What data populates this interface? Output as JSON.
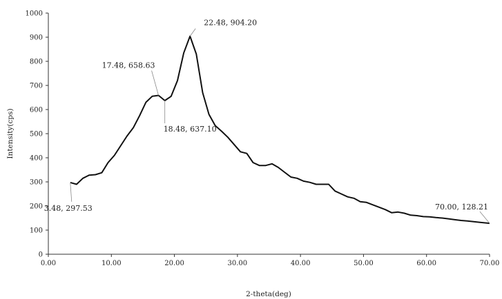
{
  "chart_data": {
    "type": "line",
    "title": "",
    "xlabel": "2-theta(deg)",
    "ylabel": "Intensity(cps)",
    "xlim": [
      0,
      70
    ],
    "ylim": [
      0,
      1000
    ],
    "x_ticks": [
      "0.00",
      "10.00",
      "20.00",
      "30.00",
      "40.00",
      "50.00",
      "60.00",
      "70.00"
    ],
    "y_ticks": [
      "0",
      "100",
      "200",
      "300",
      "400",
      "500",
      "600",
      "700",
      "800",
      "900",
      "1000"
    ],
    "grid": false,
    "legend": false,
    "series": [
      {
        "x": [
          3.48,
          4.48,
          5.48,
          6.48,
          7.48,
          8.48,
          9.48,
          10.48,
          11.48,
          12.48,
          13.48,
          14.48,
          15.48,
          16.48,
          17.48,
          18.48,
          19.48,
          20.48,
          21.48,
          22.48,
          23.48,
          24.48,
          25.48,
          26.48,
          27.48,
          28.48,
          29.48,
          30.48,
          31.48,
          32.48,
          33.48,
          34.48,
          35.48,
          36.48,
          37.48,
          38.48,
          39.48,
          40.48,
          41.48,
          42.48,
          43.48,
          44.48,
          45.48,
          46.48,
          47.48,
          48.48,
          49.48,
          50.48,
          51.48,
          52.48,
          53.48,
          54.48,
          55.48,
          56.48,
          57.48,
          58.48,
          59.48,
          60.48,
          61.48,
          62.48,
          63.48,
          64.48,
          65.48,
          66.48,
          67.48,
          68.48,
          70.0
        ],
        "y": [
          297.53,
          290,
          315,
          328,
          330,
          338,
          380,
          410,
          450,
          490,
          525,
          575,
          630,
          655,
          658.63,
          637.1,
          655,
          720,
          835,
          904.2,
          830,
          670,
          580,
          533,
          510,
          485,
          455,
          425,
          418,
          380,
          368,
          368,
          375,
          360,
          340,
          320,
          315,
          303,
          298,
          290,
          290,
          290,
          262,
          250,
          238,
          232,
          218,
          215,
          205,
          195,
          185,
          172,
          175,
          170,
          162,
          160,
          156,
          155,
          152,
          150,
          147,
          143,
          140,
          138,
          135,
          132,
          128.21
        ]
      }
    ],
    "annotations": [
      {
        "text": "22.48, 904.20",
        "x": 22.48,
        "y": 904.2
      },
      {
        "text": "17.48, 658.63",
        "x": 17.48,
        "y": 658.63
      },
      {
        "text": "18.48, 637.10",
        "x": 18.48,
        "y": 637.1
      },
      {
        "text": "3.48, 297.53",
        "x": 3.48,
        "y": 297.53
      },
      {
        "text": "70.00, 128.21",
        "x": 70.0,
        "y": 128.21
      }
    ],
    "colors": {
      "line": "#111111",
      "axis": "#333333",
      "text": "#222222"
    }
  }
}
